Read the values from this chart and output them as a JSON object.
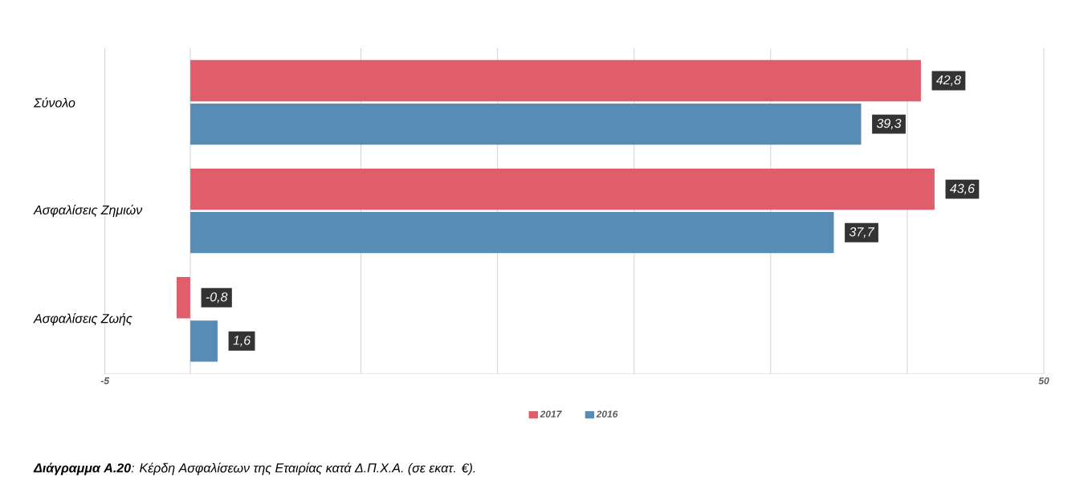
{
  "chart_data": {
    "type": "bar",
    "orientation": "horizontal",
    "categories": [
      "Σύνολο",
      "Ασφαλίσεις Ζημιών",
      "Ασφαλίσεις Ζωής"
    ],
    "series": [
      {
        "name": "2017",
        "color": "#e05d6b",
        "values": [
          42.8,
          43.6,
          -0.8
        ],
        "value_labels": [
          "42,8",
          "43,6",
          "-0,8"
        ]
      },
      {
        "name": "2016",
        "color": "#578db5",
        "values": [
          39.3,
          37.7,
          1.6
        ],
        "value_labels": [
          "39,3",
          "37,7",
          "1,6"
        ]
      }
    ],
    "xlim": [
      -5,
      50
    ],
    "xticks": [
      -5,
      {
        "value": 10,
        "label": null
      },
      {
        "value": 18,
        "label": null
      },
      {
        "value": 26,
        "label": null
      },
      {
        "value": 34,
        "label": null
      },
      {
        "value": 42,
        "label": null
      },
      50
    ],
    "grid": "x",
    "legend": "bottom",
    "annotations": [
      "**Διάγραμμα Α.20**: Κέρδη Ασφαλίσεων της Εταιρίας κατά Δ.Π.Χ.Α. (σε εκατ. €)."
    ]
  }
}
